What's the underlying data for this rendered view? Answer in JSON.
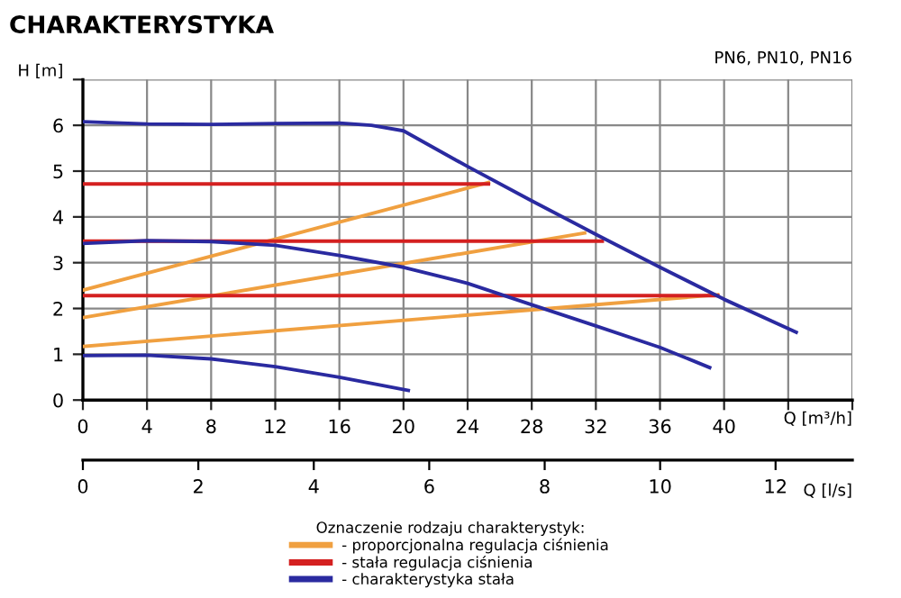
{
  "chart_data": {
    "type": "line",
    "title": "CHARAKTERYSTYKA",
    "xlabel": "Q [m³/h]",
    "x2label": "Q [l/s]",
    "ylabel": "H [m]",
    "legend_title": "Oznaczenie rodzaju charakterystyk:",
    "annotations": [
      "PN6, PN10, PN16"
    ],
    "xlim": [
      0,
      48
    ],
    "xticks": [
      0,
      4,
      8,
      12,
      16,
      20,
      24,
      28,
      32,
      36,
      40,
      {
        "value": 44,
        "label": null
      },
      {
        "value": 48,
        "label": null
      }
    ],
    "x2lim": [
      0,
      13.33
    ],
    "x2ticks": [
      0,
      2,
      4,
      6,
      8,
      10,
      12
    ],
    "ylim": [
      0,
      7
    ],
    "yticks": [
      0,
      1,
      2,
      3,
      4,
      5,
      6,
      {
        "value": 7,
        "label": null
      }
    ],
    "grid": true,
    "legend": "bottom",
    "marker": "none",
    "line_style": "solid",
    "series": [
      {
        "name": "- proporcjonalna regulacja ciśnienia",
        "color": "#f0a040",
        "x": [
          0,
          25.3
        ],
        "values": [
          2.4,
          4.75
        ]
      },
      {
        "color": "#f0a040",
        "x": [
          0,
          31.3
        ],
        "values": [
          1.8,
          3.65
        ]
      },
      {
        "color": "#f0a040",
        "x": [
          0,
          39.6
        ],
        "values": [
          1.17,
          2.3
        ]
      },
      {
        "name": "- stała regulacja ciśnienia",
        "color": "#d42020",
        "x": [
          0,
          25.3
        ],
        "values": [
          4.72,
          4.72
        ]
      },
      {
        "color": "#d42020",
        "x": [
          0,
          32.4
        ],
        "values": [
          3.47,
          3.47
        ]
      },
      {
        "color": "#d42020",
        "x": [
          0,
          39.6
        ],
        "values": [
          2.28,
          2.28
        ]
      },
      {
        "name": "- charakterystyka stała",
        "color": "#2a2aa0",
        "x": [
          0,
          4,
          8,
          12,
          16,
          18,
          20,
          24,
          28,
          32,
          36,
          40,
          44.5
        ],
        "values": [
          6.08,
          6.03,
          6.02,
          6.04,
          6.05,
          6.0,
          5.88,
          5.1,
          4.35,
          3.62,
          2.9,
          2.2,
          1.48
        ]
      },
      {
        "color": "#2a2aa0",
        "x": [
          0,
          4,
          8,
          12,
          16,
          20,
          24,
          28,
          32,
          36,
          39.1
        ],
        "values": [
          3.42,
          3.48,
          3.46,
          3.38,
          3.16,
          2.9,
          2.55,
          2.08,
          1.62,
          1.15,
          0.71
        ]
      },
      {
        "color": "#2a2aa0",
        "x": [
          0,
          4,
          8,
          12,
          16,
          20.3
        ],
        "values": [
          0.97,
          0.98,
          0.9,
          0.73,
          0.5,
          0.21
        ]
      }
    ]
  }
}
